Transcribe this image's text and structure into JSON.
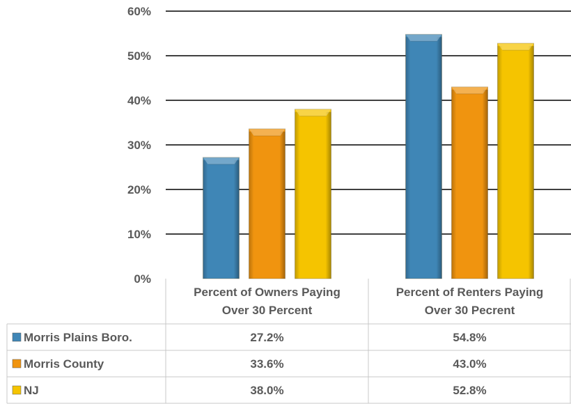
{
  "chart_data": {
    "type": "bar",
    "categories": [
      [
        "Percent of Owners Paying",
        "Over 30 Percent"
      ],
      [
        "Percent of Renters Paying",
        "Over 30 Pecrent"
      ]
    ],
    "series": [
      {
        "name": "Morris Plains Boro.",
        "values": [
          27.2,
          54.8
        ],
        "labels": [
          "27.2%",
          "54.8%"
        ],
        "color": "#3f86b6"
      },
      {
        "name": "Morris County",
        "values": [
          33.6,
          43.0
        ],
        "labels": [
          "33.6%",
          "43.0%"
        ],
        "color": "#f0940f"
      },
      {
        "name": "NJ",
        "values": [
          38.0,
          52.8
        ],
        "labels": [
          "38.0%",
          "52.8%"
        ],
        "color": "#f5c400"
      }
    ],
    "y_ticks": [
      "0%",
      "10%",
      "20%",
      "30%",
      "40%",
      "50%",
      "60%"
    ],
    "ylim": [
      0,
      60
    ],
    "grid": true,
    "legend": "data-table-below"
  }
}
